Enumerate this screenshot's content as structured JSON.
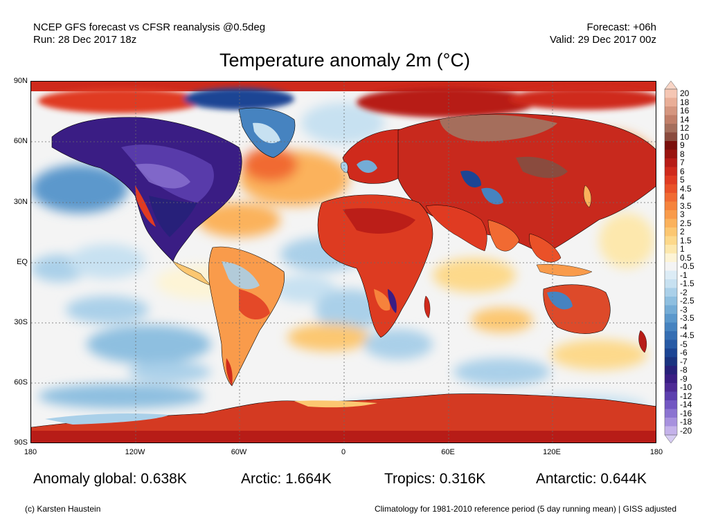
{
  "header": {
    "model_line": "NCEP GFS forecast vs CFSR reanalysis @0.5deg",
    "run_line": "Run: 28 Dec 2017 18z",
    "forecast_line": "Forecast: +06h",
    "valid_line": "Valid: 29 Dec 2017 00z"
  },
  "title": "Temperature anomaly 2m (°C)",
  "map": {
    "y_ticks": [
      "90N",
      "60N",
      "30N",
      "EQ",
      "30S",
      "60S",
      "90S"
    ],
    "x_ticks": [
      "180",
      "120W",
      "60W",
      "0",
      "60E",
      "120E",
      "180"
    ],
    "ocean_color": "#f4f4f4",
    "regions": [
      {
        "name": "North America",
        "anomaly": -8,
        "color": "#5c3fae"
      },
      {
        "name": "Eurasia",
        "anomaly": 7,
        "color": "#c8291d"
      },
      {
        "name": "Siberia",
        "anomaly": 12,
        "color": "#a56e5c"
      },
      {
        "name": "Africa",
        "anomaly": 5,
        "color": "#dd3b21"
      },
      {
        "name": "Australia",
        "anomaly": 5,
        "color": "#dd4a2a"
      },
      {
        "name": "Antarctica",
        "anomaly": 5,
        "color": "#d43a22"
      },
      {
        "name": "Arctic",
        "anomaly": 8,
        "color": "#b01f14"
      },
      {
        "name": "South America",
        "anomaly": 2,
        "color": "#f3a14e"
      },
      {
        "name": "Greenland",
        "anomaly": -3,
        "color": "#4a7fc0"
      }
    ]
  },
  "colorbar": {
    "levels": [
      {
        "label": "20",
        "color": "#f5c6b3"
      },
      {
        "label": "18",
        "color": "#e9ae97"
      },
      {
        "label": "16",
        "color": "#d5967f"
      },
      {
        "label": "14",
        "color": "#c17f69"
      },
      {
        "label": "12",
        "color": "#a56e5c"
      },
      {
        "label": "10",
        "color": "#8a4b3e"
      },
      {
        "label": "9",
        "color": "#7a0f0c"
      },
      {
        "label": "8",
        "color": "#9a1410"
      },
      {
        "label": "7",
        "color": "#b71c17"
      },
      {
        "label": "6",
        "color": "#cf2a1c"
      },
      {
        "label": "5",
        "color": "#e03b22"
      },
      {
        "label": "4.5",
        "color": "#ea5128"
      },
      {
        "label": "4",
        "color": "#f16a32"
      },
      {
        "label": "3.5",
        "color": "#f6833c"
      },
      {
        "label": "3",
        "color": "#f99b4b"
      },
      {
        "label": "2.5",
        "color": "#fbb25c"
      },
      {
        "label": "2",
        "color": "#fcc771"
      },
      {
        "label": "1.5",
        "color": "#fdd98b"
      },
      {
        "label": "1",
        "color": "#fde8ad"
      },
      {
        "label": "0.5",
        "color": "#fdf4d6"
      },
      {
        "label": "-0.5",
        "color": "#f4f4f4"
      },
      {
        "label": "-1",
        "color": "#dcecf6"
      },
      {
        "label": "-1.5",
        "color": "#c7e1f1"
      },
      {
        "label": "-2",
        "color": "#aad0e9"
      },
      {
        "label": "-2.5",
        "color": "#8ebfe0"
      },
      {
        "label": "-3",
        "color": "#74acd6"
      },
      {
        "label": "-3.5",
        "color": "#5b98cc"
      },
      {
        "label": "-4",
        "color": "#4683c0"
      },
      {
        "label": "-4.5",
        "color": "#356eb3"
      },
      {
        "label": "-5",
        "color": "#275aa5"
      },
      {
        "label": "-6",
        "color": "#1c4594"
      },
      {
        "label": "-7",
        "color": "#1a3380"
      },
      {
        "label": "-8",
        "color": "#27207a"
      },
      {
        "label": "-9",
        "color": "#3a1d84"
      },
      {
        "label": "-10",
        "color": "#4d2a95"
      },
      {
        "label": "-12",
        "color": "#5c3fae"
      },
      {
        "label": "-14",
        "color": "#7256c2"
      },
      {
        "label": "-16",
        "color": "#8b73d1"
      },
      {
        "label": "-18",
        "color": "#a791de"
      },
      {
        "label": "-20",
        "color": "#c4b2ea"
      }
    ],
    "over_color": "#f8d5c6",
    "under_color": "#d6ccf2"
  },
  "stats": {
    "global": "Anomaly global: 0.638K",
    "arctic": "Arctic: 1.664K",
    "tropics": "Tropics: 0.316K",
    "antarctic": "Antarctic: 0.644K"
  },
  "footer": {
    "credit": "(c) Karsten Haustein",
    "climatology": "Climatology for 1981-2010 reference period (5 day running mean) | GISS adjusted"
  }
}
